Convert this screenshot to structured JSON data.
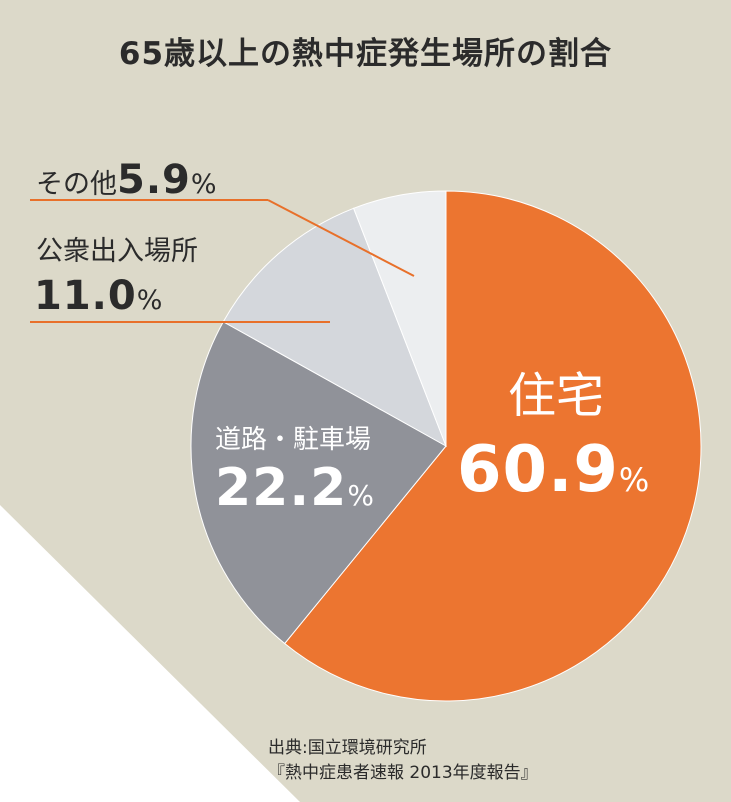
{
  "title": "65歳以上の熱中症発生場所の割合",
  "chart_data": {
    "type": "pie",
    "title": "65歳以上の熱中症発生場所の割合",
    "slices": [
      {
        "label": "住宅",
        "value": 60.9,
        "color": "#ec7530"
      },
      {
        "label": "道路・駐車場",
        "value": 22.2,
        "color": "#909299"
      },
      {
        "label": "公衆出入場所",
        "value": 11.0,
        "color": "#d4d7dc"
      },
      {
        "label": "その他",
        "value": 5.9,
        "color": "#eceef0"
      }
    ],
    "value_labels": [
      "60.9",
      "22.2",
      "11.0",
      "5.9"
    ],
    "unit": "%",
    "start": "12 o'clock",
    "direction": "clockwise"
  },
  "labels": {
    "jutaku_name": "住宅",
    "jutaku_value": "60.9",
    "road_name": "道路・駐車場",
    "road_value": "22.2",
    "public_name": "公衆出入場所",
    "public_value": "11.0",
    "other_name": "その他",
    "other_value": "5.9",
    "percent": "%"
  },
  "source": {
    "line1": "出典:国立環境研究所",
    "line2": "『熱中症患者速報 2013年度報告』"
  },
  "colors": {
    "background": "#dcd9c9",
    "paper_corner": "#ffffff",
    "leader_line": "#e8702a"
  }
}
